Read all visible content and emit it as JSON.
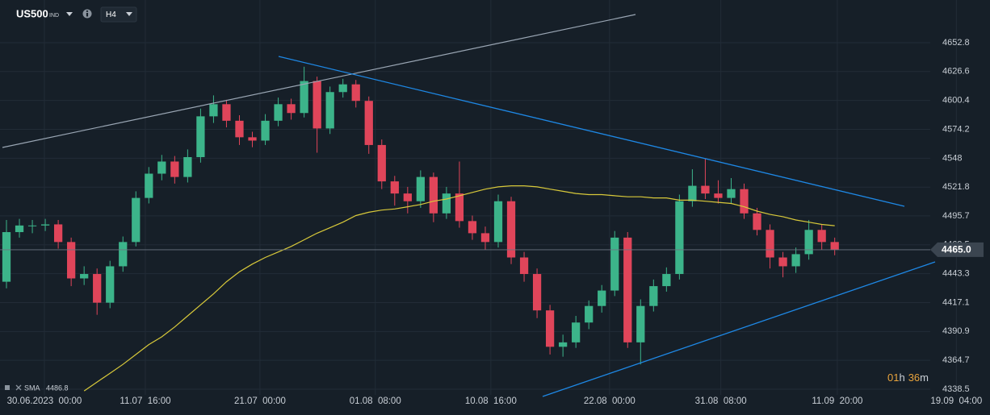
{
  "chart_data": {
    "type": "candlestick",
    "title": "US500",
    "title_tag": "IND",
    "timeframe": "H4",
    "up_color": "#3cb48a",
    "down_color": "#e0455a",
    "ylim": [
      4333.4,
      4691.5
    ],
    "yticks": [
      4338.5,
      4364.7,
      4390.9,
      4417.1,
      4443.3,
      4469.5,
      4495.7,
      4521.8,
      4548.0,
      4574.2,
      4600.4,
      4626.6,
      4652.8
    ],
    "xlim": [
      -0.5,
      76
    ],
    "xticks": [
      {
        "value": 2.93,
        "label": "30.06.2023  00:00"
      },
      {
        "value": 10.73,
        "label": "11.07  16:00"
      },
      {
        "value": 19.59,
        "label": "21.07  00:00"
      },
      {
        "value": 28.5,
        "label": "01.08  08:00"
      },
      {
        "value": 37.43,
        "label": "10.08  16:00"
      },
      {
        "value": 46.6,
        "label": "22.08  00:00"
      },
      {
        "value": 55.2,
        "label": "31.08  08:00"
      },
      {
        "value": 64.2,
        "label": "11.09  20:00"
      },
      {
        "value": 73.4,
        "label": "19.09  04:00"
      }
    ],
    "grid": true,
    "ohlc": {
      "open": [
        4436,
        4481,
        4487,
        4487,
        4488,
        4472,
        4439,
        4443,
        4417,
        4450,
        4472,
        4512,
        4534,
        4545,
        4531,
        4549,
        4586,
        4597,
        4582,
        4567,
        4564,
        4582,
        4597,
        4589,
        4618,
        4575,
        4608,
        4615,
        4600,
        4560,
        4527,
        4516,
        4509,
        4531,
        4498,
        4516,
        4491,
        4480,
        4472,
        4509,
        4458,
        4443,
        4410,
        4377,
        4381,
        4399,
        4414,
        4428,
        4476,
        4381,
        4414,
        4432,
        4443,
        4509,
        4523,
        4516,
        4512,
        4520,
        4498,
        4483,
        4458,
        4450,
        4461,
        4483,
        4472
      ],
      "high": [
        4492,
        4493,
        4492,
        4493,
        4492,
        4476,
        4450,
        4448,
        4455,
        4477,
        4518,
        4540,
        4551,
        4550,
        4556,
        4593,
        4605,
        4601,
        4587,
        4572,
        4588,
        4603,
        4602,
        4631,
        4622,
        4613,
        4620,
        4619,
        4604,
        4565,
        4532,
        4522,
        4537,
        4535,
        4522,
        4545,
        4496,
        4486,
        4515,
        4513,
        4463,
        4448,
        4415,
        4388,
        4405,
        4419,
        4433,
        4482,
        4481,
        4420,
        4438,
        4449,
        4515,
        4538,
        4548,
        4528,
        4530,
        4525,
        4503,
        4488,
        4463,
        4467,
        4492,
        4488,
        4476
      ],
      "low": [
        4430,
        4476,
        4480,
        4482,
        4466,
        4432,
        4433,
        4406,
        4412,
        4445,
        4468,
        4507,
        4528,
        4525,
        4526,
        4544,
        4580,
        4576,
        4560,
        4558,
        4560,
        4577,
        4583,
        4585,
        4553,
        4570,
        4603,
        4594,
        4552,
        4520,
        4505,
        4498,
        4503,
        4490,
        4493,
        4485,
        4474,
        4465,
        4467,
        4452,
        4436,
        4403,
        4370,
        4368,
        4376,
        4393,
        4408,
        4423,
        4376,
        4361,
        4409,
        4427,
        4438,
        4504,
        4511,
        4507,
        4507,
        4493,
        4478,
        4448,
        4440,
        4444,
        4456,
        4465,
        4460
      ],
      "close": [
        4481,
        4487,
        4487,
        4488,
        4472,
        4439,
        4443,
        4417,
        4450,
        4472,
        4512,
        4534,
        4545,
        4531,
        4549,
        4586,
        4597,
        4582,
        4567,
        4564,
        4582,
        4597,
        4589,
        4618,
        4575,
        4608,
        4615,
        4600,
        4560,
        4527,
        4516,
        4509,
        4531,
        4498,
        4516,
        4491,
        4480,
        4472,
        4509,
        4458,
        4443,
        4410,
        4377,
        4381,
        4399,
        4414,
        4428,
        4476,
        4381,
        4414,
        4432,
        4443,
        4509,
        4523,
        4516,
        4512,
        4520,
        4498,
        4483,
        4458,
        4450,
        4461,
        4483,
        4472,
        4465
      ]
    },
    "sma": {
      "name": "SMA",
      "color": "#d8c93a",
      "values": [
        null,
        null,
        null,
        null,
        null,
        null,
        4337,
        4345,
        4353,
        4361,
        4370,
        4379,
        4386,
        4395,
        4405,
        4415,
        4425,
        4436,
        4445,
        4452,
        4458,
        4463,
        4468,
        4474,
        4480,
        4485,
        4490,
        4496,
        4499,
        4501,
        4502,
        4504,
        4506,
        4509,
        4511,
        4514,
        4517,
        4520,
        4522,
        4523,
        4523,
        4522,
        4520,
        4518,
        4516,
        4515,
        4515,
        4514,
        4513,
        4513,
        4512,
        4512,
        4510,
        4510,
        4509,
        4508,
        4507,
        4504,
        4500,
        4497,
        4495,
        4492,
        4490,
        4488,
        4486.8
      ]
    },
    "current_price": {
      "value": 4465.0,
      "label": "4465.0"
    },
    "countdown": [
      "01",
      "h",
      "36",
      "m"
    ]
  }
}
